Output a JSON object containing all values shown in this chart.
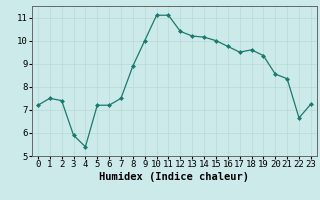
{
  "x": [
    0,
    1,
    2,
    3,
    4,
    5,
    6,
    7,
    8,
    9,
    10,
    11,
    12,
    13,
    14,
    15,
    16,
    17,
    18,
    19,
    20,
    21,
    22,
    23
  ],
  "y": [
    7.2,
    7.5,
    7.4,
    5.9,
    5.4,
    7.2,
    7.2,
    7.5,
    8.9,
    10.0,
    11.1,
    11.1,
    10.4,
    10.2,
    10.15,
    10.0,
    9.75,
    9.5,
    9.6,
    9.35,
    8.55,
    8.35,
    6.65,
    7.25
  ],
  "xlim": [
    -0.5,
    23.5
  ],
  "ylim": [
    5,
    11.5
  ],
  "yticks": [
    5,
    6,
    7,
    8,
    9,
    10,
    11
  ],
  "xticks": [
    0,
    1,
    2,
    3,
    4,
    5,
    6,
    7,
    8,
    9,
    10,
    11,
    12,
    13,
    14,
    15,
    16,
    17,
    18,
    19,
    20,
    21,
    22,
    23
  ],
  "xlabel": "Humidex (Indice chaleur)",
  "line_color": "#1a7a6e",
  "marker_color": "#1a7a6e",
  "bg_color": "#cdeaea",
  "grid_color": "#b8d8d8",
  "tick_fontsize": 6.5,
  "xlabel_fontsize": 7.5
}
